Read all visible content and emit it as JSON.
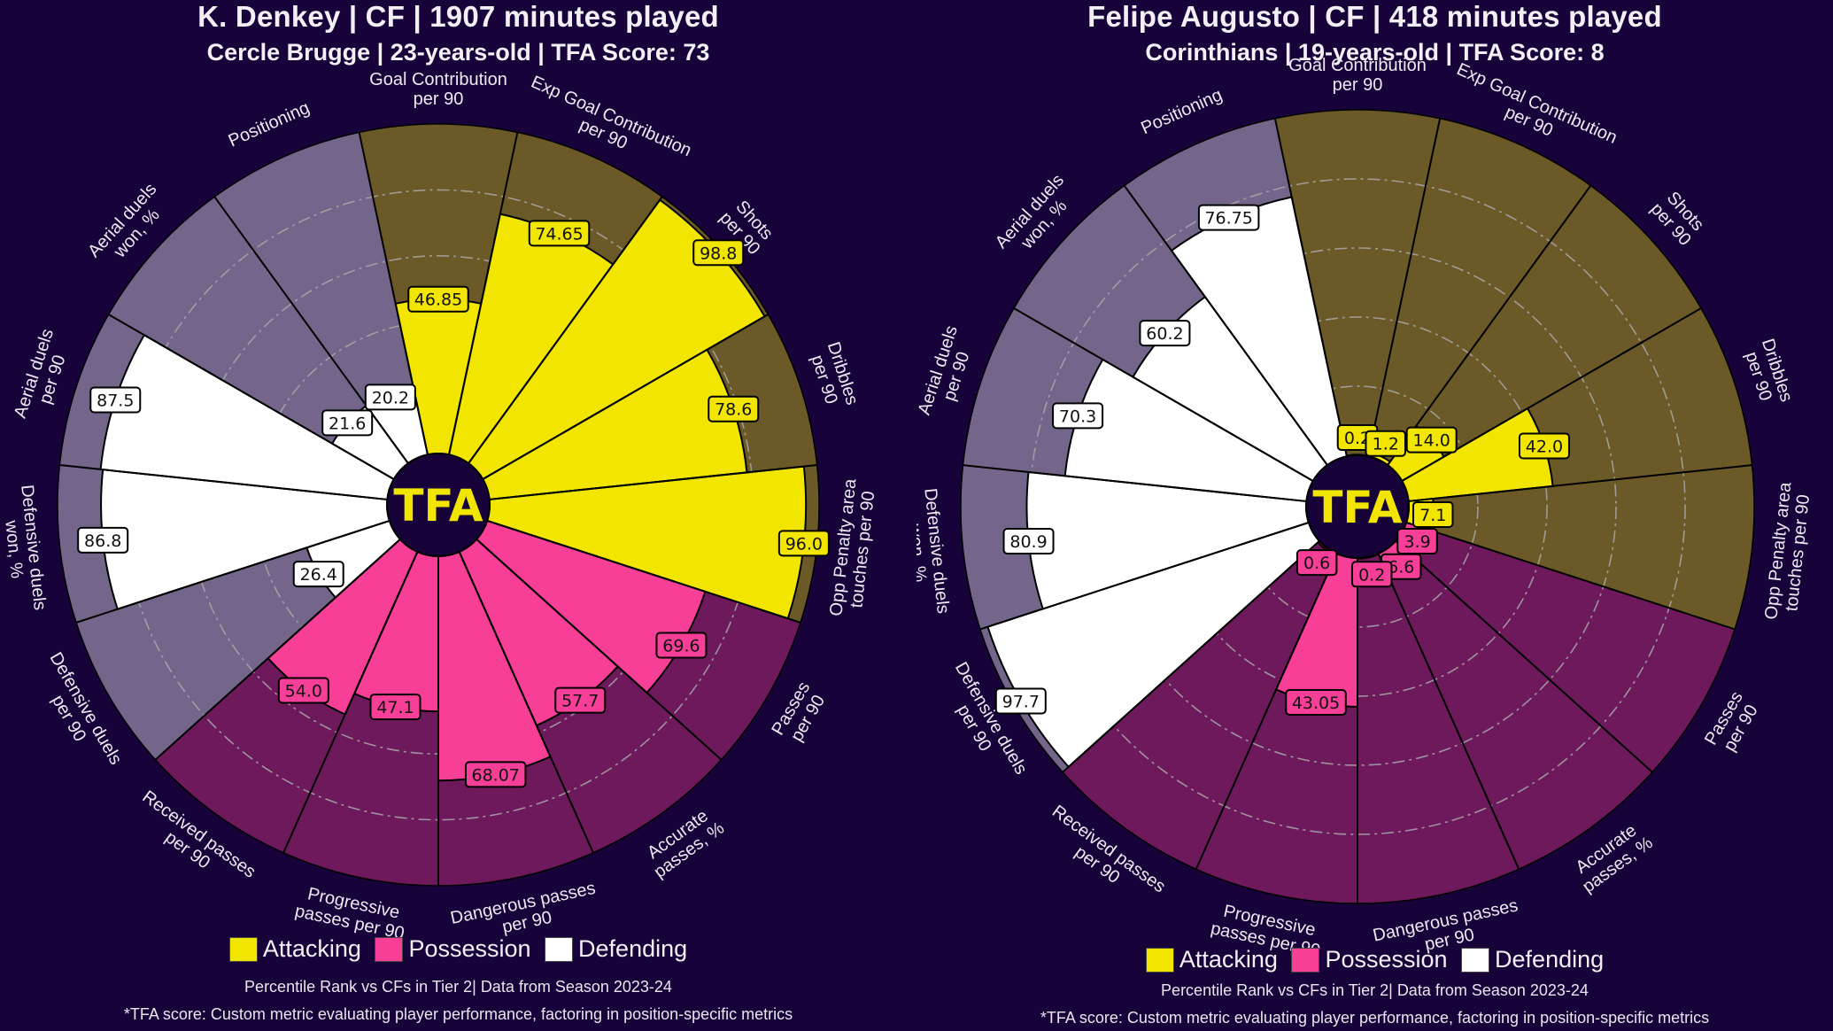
{
  "colors": {
    "background": "#17023a",
    "attacking": "#f2e600",
    "attacking_bg": "#6b5a28",
    "possession": "#f73f97",
    "possession_bg": "#6e195c",
    "defending": "#ffffff",
    "defending_bg": "#73668a",
    "grid": "#a8a8a8",
    "logo_bg": "#17023a",
    "logo_text": "#f2e600"
  },
  "logo": {
    "text": "TFA"
  },
  "legend": [
    {
      "label": "Attacking",
      "color": "#f2e600"
    },
    {
      "label": "Possession",
      "color": "#f73f97"
    },
    {
      "label": "Defending",
      "color": "#ffffff"
    }
  ],
  "chart_data": [
    {
      "type": "pie",
      "subtype": "polar-percentile-pizza",
      "title": "K. Denkey | CF | 1907 minutes played",
      "subtitle": "Cercle Brugge | 23-years-old | TFA Score: 73",
      "footnote": "Percentile Rank vs CFs in Tier 2| Data from Season 2023-24",
      "footnote2": "*TFA score: Custom metric evaluating player performance, factoring in position-specific metrics",
      "rlim": [
        0,
        100
      ],
      "grid_rings": [
        20,
        40,
        60,
        80
      ],
      "categories": [
        "Goal Contribution\nper 90",
        "Exp Goal Contribution\nper 90",
        "Shots\nper 90",
        "Dribbles\nper 90",
        "Opp Penalty area\ntouches per 90",
        "Passes\nper 90",
        "Accurate\npasses, %",
        "Dangerous passes\nper 90",
        "Progressive\npasses per 90",
        "Received passes\nper 90",
        "Defensive duels\nper 90",
        "Defensive duels\nwon, %",
        "Aerial duels\nper 90",
        "Aerial duels\nwon, %",
        "Positioning"
      ],
      "groups": [
        "Attacking",
        "Attacking",
        "Attacking",
        "Attacking",
        "Attacking",
        "Possession",
        "Possession",
        "Possession",
        "Possession",
        "Possession",
        "Defending",
        "Defending",
        "Defending",
        "Defending",
        "Defending"
      ],
      "values": [
        46.85,
        74.65,
        98.8,
        78.6,
        96.0,
        69.6,
        57.7,
        68.07,
        47.1,
        54.0,
        26.4,
        86.8,
        87.5,
        21.6,
        20.2
      ],
      "value_labels": [
        "46.85",
        "74.65",
        "98.8",
        "78.6",
        "96.0",
        "69.6",
        "57.7",
        "68.07",
        "47.1",
        "54.0",
        "26.4",
        "86.8",
        "87.5",
        "21.6",
        "20.2"
      ],
      "legend_position": "bottom"
    },
    {
      "type": "pie",
      "subtype": "polar-percentile-pizza",
      "title": "Felipe Augusto | CF | 418 minutes played",
      "subtitle": "Corinthians | 19-years-old | TFA Score: 8",
      "footnote": "Percentile Rank vs CFs in Tier 2| Data from Season 2023-24",
      "footnote2": "*TFA score: Custom metric evaluating player performance, factoring in position-specific metrics",
      "rlim": [
        0,
        100
      ],
      "grid_rings": [
        20,
        40,
        60,
        80
      ],
      "categories": [
        "Goal Contribution\nper 90",
        "Exp Goal Contribution\nper 90",
        "Shots\nper 90",
        "Dribbles\nper 90",
        "Opp Penalty area\ntouches per 90",
        "Passes\nper 90",
        "Accurate\npasses, %",
        "Dangerous passes\nper 90",
        "Progressive\npasses per 90",
        "Received passes\nper 90",
        "Defensive duels\nper 90",
        "Defensive duels\nwon, %",
        "Aerial duels\nper 90",
        "Aerial duels\nwon, %",
        "Positioning"
      ],
      "groups": [
        "Attacking",
        "Attacking",
        "Attacking",
        "Attacking",
        "Attacking",
        "Possession",
        "Possession",
        "Possession",
        "Possession",
        "Possession",
        "Defending",
        "Defending",
        "Defending",
        "Defending",
        "Defending"
      ],
      "values": [
        0.2,
        1.2,
        14.0,
        42.0,
        7.1,
        3.9,
        6.6,
        0.2,
        43.05,
        0.6,
        97.7,
        80.9,
        70.3,
        60.2,
        76.75
      ],
      "value_labels": [
        "0.2",
        "1.2",
        "14.0",
        "42.0",
        "7.1",
        "3.9",
        "6.6",
        "0.2",
        "43.05",
        "0.6",
        "97.7",
        "80.9",
        "70.3",
        "60.2",
        "76.75"
      ],
      "legend_position": "bottom"
    }
  ]
}
